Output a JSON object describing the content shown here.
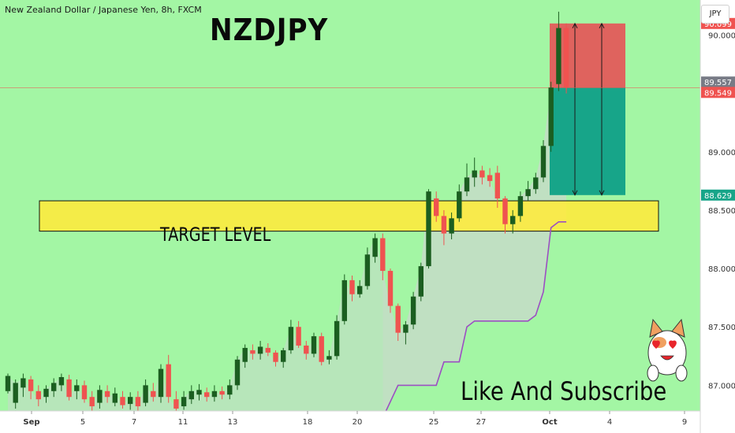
{
  "header": {
    "instrument": "New Zealand Dollar / Japanese Yen, 8h, FXCM",
    "symbol": "NZDJPY",
    "currency_button": "JPY"
  },
  "annotations": {
    "zone_label": "TARGET LEVEL",
    "call_to_action": "Like And Subscribe"
  },
  "colors": {
    "background": "#a3f6a4",
    "bull": "#1b5e20",
    "bear": "#ef5350",
    "target_zone": "#ffeb3b",
    "stop_box": "#e35b5b",
    "profit_box": "#17a589",
    "trail_line": "#9c4fc2"
  },
  "chart_data": {
    "type": "candlestick",
    "ylim": [
      86.78,
      90.3
    ],
    "y_ticks": [
      87.0,
      87.5,
      88.0,
      88.5,
      89.0,
      90.0
    ],
    "x_tick_labels": [
      "Sep",
      "5",
      "7",
      "11",
      "13",
      "18",
      "20",
      "25",
      "27",
      "Oct",
      "4",
      "9"
    ],
    "price_labels": [
      {
        "value": 90.099,
        "text": "90.099",
        "color": "#ef5350"
      },
      {
        "value": 89.557,
        "text": "89.557",
        "color": "#787b86"
      },
      {
        "value": 89.549,
        "text": "89.549",
        "color": "#ef5350"
      },
      {
        "value": 88.629,
        "text": "88.629",
        "color": "#17a589"
      }
    ],
    "target_zone": {
      "from": 88.32,
      "to": 88.58
    },
    "position": {
      "entry": 89.549,
      "stop": 90.099,
      "target": 88.629
    },
    "candles": [
      [
        86.95,
        87.08,
        86.93,
        87.1
      ],
      [
        86.85,
        87.02,
        86.8,
        87.05
      ],
      [
        86.98,
        87.06,
        86.9,
        87.1
      ],
      [
        87.05,
        86.95,
        86.88,
        87.08
      ],
      [
        86.95,
        86.88,
        86.82,
        87.0
      ],
      [
        86.9,
        86.97,
        86.85,
        87.0
      ],
      [
        86.95,
        87.02,
        86.9,
        87.06
      ],
      [
        87.0,
        87.07,
        86.95,
        87.1
      ],
      [
        87.05,
        86.9,
        86.87,
        87.09
      ],
      [
        86.95,
        87.0,
        86.88,
        87.05
      ],
      [
        87.0,
        86.88,
        86.85,
        87.04
      ],
      [
        86.9,
        86.82,
        86.78,
        86.95
      ],
      [
        86.85,
        86.96,
        86.8,
        87.0
      ],
      [
        86.95,
        86.9,
        86.85,
        87.0
      ],
      [
        86.85,
        86.93,
        86.82,
        86.98
      ],
      [
        86.9,
        86.83,
        86.8,
        86.95
      ],
      [
        86.84,
        86.9,
        86.79,
        86.94
      ],
      [
        86.9,
        86.82,
        86.78,
        86.95
      ],
      [
        86.85,
        87.0,
        86.82,
        87.05
      ],
      [
        86.95,
        86.9,
        86.86,
        87.02
      ],
      [
        86.9,
        87.14,
        86.85,
        87.18
      ],
      [
        87.18,
        86.9,
        86.85,
        87.26
      ],
      [
        86.88,
        86.8,
        86.78,
        86.95
      ],
      [
        86.82,
        86.9,
        86.79,
        86.95
      ],
      [
        86.88,
        86.95,
        86.84,
        87.0
      ],
      [
        86.92,
        86.96,
        86.87,
        87.01
      ],
      [
        86.94,
        86.9,
        86.86,
        86.98
      ],
      [
        86.9,
        86.95,
        86.86,
        87.0
      ],
      [
        86.95,
        86.92,
        86.88,
        86.99
      ],
      [
        86.92,
        87.0,
        86.88,
        87.05
      ],
      [
        87.0,
        87.22,
        86.96,
        87.25
      ],
      [
        87.2,
        87.32,
        87.15,
        87.35
      ],
      [
        87.3,
        87.27,
        87.22,
        87.35
      ],
      [
        87.27,
        87.33,
        87.22,
        87.38
      ],
      [
        87.32,
        87.28,
        87.25,
        87.36
      ],
      [
        87.28,
        87.2,
        87.16,
        87.3
      ],
      [
        87.2,
        87.3,
        87.15,
        87.32
      ],
      [
        87.3,
        87.5,
        87.27,
        87.56
      ],
      [
        87.5,
        87.34,
        87.32,
        87.55
      ],
      [
        87.34,
        87.27,
        87.22,
        87.38
      ],
      [
        87.27,
        87.42,
        87.24,
        87.45
      ],
      [
        87.42,
        87.2,
        87.17,
        87.45
      ],
      [
        87.22,
        87.25,
        87.18,
        87.3
      ],
      [
        87.25,
        87.55,
        87.22,
        87.6
      ],
      [
        87.55,
        87.9,
        87.52,
        87.95
      ],
      [
        87.9,
        87.78,
        87.72,
        87.94
      ],
      [
        87.78,
        87.85,
        87.75,
        87.9
      ],
      [
        87.85,
        88.12,
        87.82,
        88.18
      ],
      [
        88.1,
        88.26,
        88.05,
        88.3
      ],
      [
        88.26,
        87.98,
        87.9,
        88.3
      ],
      [
        87.98,
        87.68,
        87.62,
        88.0
      ],
      [
        87.68,
        87.45,
        87.38,
        87.7
      ],
      [
        87.45,
        87.52,
        87.35,
        87.55
      ],
      [
        87.52,
        87.76,
        87.48,
        87.8
      ],
      [
        87.76,
        88.02,
        87.72,
        88.05
      ],
      [
        88.02,
        88.66,
        88.0,
        88.68
      ],
      [
        88.6,
        88.45,
        88.4,
        88.66
      ],
      [
        88.45,
        88.3,
        88.2,
        88.5
      ],
      [
        88.3,
        88.43,
        88.25,
        88.48
      ],
      [
        88.43,
        88.66,
        88.4,
        88.72
      ],
      [
        88.66,
        88.78,
        88.62,
        88.9
      ],
      [
        88.78,
        88.84,
        88.7,
        88.95
      ],
      [
        88.84,
        88.78,
        88.72,
        88.88
      ],
      [
        88.8,
        88.75,
        88.7,
        88.86
      ],
      [
        88.82,
        88.6,
        88.52,
        88.88
      ],
      [
        88.6,
        88.38,
        88.3,
        88.62
      ],
      [
        88.38,
        88.45,
        88.3,
        88.5
      ],
      [
        88.45,
        88.62,
        88.4,
        88.66
      ],
      [
        88.62,
        88.68,
        88.58,
        88.75
      ],
      [
        88.68,
        88.78,
        88.64,
        88.82
      ],
      [
        88.78,
        89.05,
        88.74,
        89.1
      ],
      [
        89.05,
        89.55,
        89.0,
        89.6
      ],
      [
        89.58,
        90.06,
        89.52,
        90.2
      ],
      [
        90.06,
        89.55,
        89.5,
        90.1
      ]
    ],
    "trail_line": [
      [
        49,
        86.72
      ],
      [
        51,
        87.0
      ],
      [
        56,
        87.0
      ],
      [
        57,
        87.2
      ],
      [
        59,
        87.2
      ],
      [
        60,
        87.5
      ],
      [
        61,
        87.55
      ],
      [
        68,
        87.55
      ],
      [
        69,
        87.6
      ],
      [
        70,
        87.8
      ],
      [
        71,
        88.35
      ],
      [
        72,
        88.4
      ],
      [
        73,
        88.4
      ]
    ]
  }
}
